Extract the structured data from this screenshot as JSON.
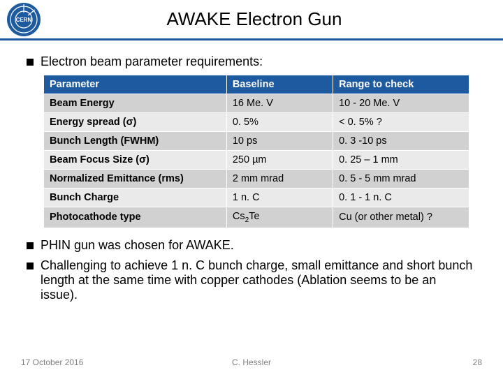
{
  "header": {
    "title": "AWAKE Electron Gun",
    "logo_bg": "#1e5aa0",
    "logo_text": "CERN"
  },
  "intro_bullet": "Electron beam parameter requirements:",
  "table": {
    "header_bg": "#1e5aa0",
    "header_fg": "#ffffff",
    "row_odd_bg": "#d1d1d1",
    "row_even_bg": "#eaeaea",
    "columns": [
      "Parameter",
      "Baseline",
      "Range to check"
    ],
    "rows": [
      {
        "param": "Beam Energy",
        "baseline": "16 Me. V",
        "range": "10 - 20 Me. V"
      },
      {
        "param": "Energy spread (σ)",
        "baseline": "0. 5%",
        "range": "< 0. 5% ?"
      },
      {
        "param": "Bunch Length (FWHM)",
        "baseline": "10 ps",
        "range": "0. 3 -10 ps"
      },
      {
        "param": "Beam Focus Size (σ)",
        "baseline": "250 µm",
        "range": "0. 25 – 1 mm"
      },
      {
        "param": "Normalized Emittance (rms)",
        "baseline": "2 mm mrad",
        "range": "0. 5 - 5 mm mrad"
      },
      {
        "param": "Bunch Charge",
        "baseline": "1 n. C",
        "range": "0. 1 - 1 n. C"
      },
      {
        "param": "Photocathode type",
        "baseline_html": "Cs<sub>2</sub>Te",
        "baseline": "Cs2Te",
        "range": "Cu (or other metal) ?"
      }
    ]
  },
  "bullets_after": [
    "PHIN gun was chosen for AWAKE.",
    "Challenging to achieve 1 n. C bunch charge, small emittance and short bunch length at the same time with copper cathodes (Ablation seems to be an issue)."
  ],
  "footer": {
    "date": "17 October 2016",
    "author": "C. Hessler",
    "page": "28"
  }
}
